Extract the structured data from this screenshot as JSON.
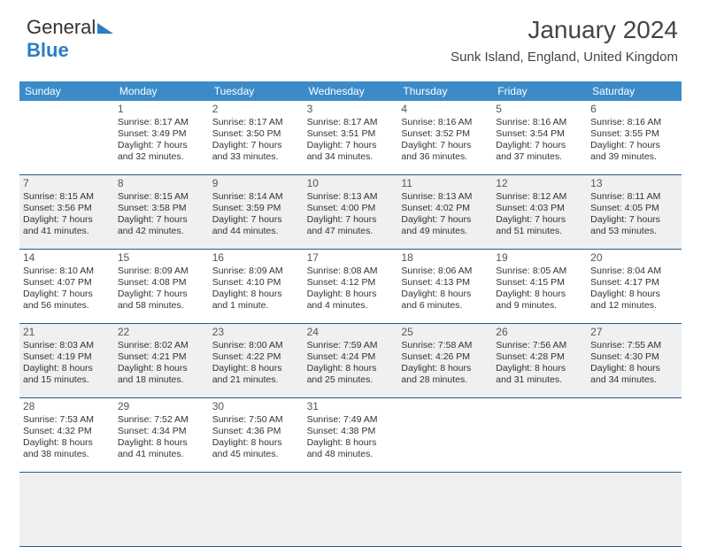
{
  "brand": {
    "part1": "General",
    "part2": "Blue"
  },
  "title": "January 2024",
  "subtitle": "Sunk Island, England, United Kingdom",
  "weekdays": [
    "Sunday",
    "Monday",
    "Tuesday",
    "Wednesday",
    "Thursday",
    "Friday",
    "Saturday"
  ],
  "colors": {
    "header_bg": "#3b8bc9",
    "header_text": "#ffffff",
    "border": "#2b5a8a",
    "shade_bg": "#eef0f1",
    "text": "#333333",
    "brand_blue": "#2b7ec2"
  },
  "calendar": {
    "start_weekday": 1,
    "num_days": 31,
    "rows": 6
  },
  "days": {
    "1": {
      "sunrise": "8:17 AM",
      "sunset": "3:49 PM",
      "daylight": "7 hours and 32 minutes."
    },
    "2": {
      "sunrise": "8:17 AM",
      "sunset": "3:50 PM",
      "daylight": "7 hours and 33 minutes."
    },
    "3": {
      "sunrise": "8:17 AM",
      "sunset": "3:51 PM",
      "daylight": "7 hours and 34 minutes."
    },
    "4": {
      "sunrise": "8:16 AM",
      "sunset": "3:52 PM",
      "daylight": "7 hours and 36 minutes."
    },
    "5": {
      "sunrise": "8:16 AM",
      "sunset": "3:54 PM",
      "daylight": "7 hours and 37 minutes."
    },
    "6": {
      "sunrise": "8:16 AM",
      "sunset": "3:55 PM",
      "daylight": "7 hours and 39 minutes."
    },
    "7": {
      "sunrise": "8:15 AM",
      "sunset": "3:56 PM",
      "daylight": "7 hours and 41 minutes."
    },
    "8": {
      "sunrise": "8:15 AM",
      "sunset": "3:58 PM",
      "daylight": "7 hours and 42 minutes."
    },
    "9": {
      "sunrise": "8:14 AM",
      "sunset": "3:59 PM",
      "daylight": "7 hours and 44 minutes."
    },
    "10": {
      "sunrise": "8:13 AM",
      "sunset": "4:00 PM",
      "daylight": "7 hours and 47 minutes."
    },
    "11": {
      "sunrise": "8:13 AM",
      "sunset": "4:02 PM",
      "daylight": "7 hours and 49 minutes."
    },
    "12": {
      "sunrise": "8:12 AM",
      "sunset": "4:03 PM",
      "daylight": "7 hours and 51 minutes."
    },
    "13": {
      "sunrise": "8:11 AM",
      "sunset": "4:05 PM",
      "daylight": "7 hours and 53 minutes."
    },
    "14": {
      "sunrise": "8:10 AM",
      "sunset": "4:07 PM",
      "daylight": "7 hours and 56 minutes."
    },
    "15": {
      "sunrise": "8:09 AM",
      "sunset": "4:08 PM",
      "daylight": "7 hours and 58 minutes."
    },
    "16": {
      "sunrise": "8:09 AM",
      "sunset": "4:10 PM",
      "daylight": "8 hours and 1 minute."
    },
    "17": {
      "sunrise": "8:08 AM",
      "sunset": "4:12 PM",
      "daylight": "8 hours and 4 minutes."
    },
    "18": {
      "sunrise": "8:06 AM",
      "sunset": "4:13 PM",
      "daylight": "8 hours and 6 minutes."
    },
    "19": {
      "sunrise": "8:05 AM",
      "sunset": "4:15 PM",
      "daylight": "8 hours and 9 minutes."
    },
    "20": {
      "sunrise": "8:04 AM",
      "sunset": "4:17 PM",
      "daylight": "8 hours and 12 minutes."
    },
    "21": {
      "sunrise": "8:03 AM",
      "sunset": "4:19 PM",
      "daylight": "8 hours and 15 minutes."
    },
    "22": {
      "sunrise": "8:02 AM",
      "sunset": "4:21 PM",
      "daylight": "8 hours and 18 minutes."
    },
    "23": {
      "sunrise": "8:00 AM",
      "sunset": "4:22 PM",
      "daylight": "8 hours and 21 minutes."
    },
    "24": {
      "sunrise": "7:59 AM",
      "sunset": "4:24 PM",
      "daylight": "8 hours and 25 minutes."
    },
    "25": {
      "sunrise": "7:58 AM",
      "sunset": "4:26 PM",
      "daylight": "8 hours and 28 minutes."
    },
    "26": {
      "sunrise": "7:56 AM",
      "sunset": "4:28 PM",
      "daylight": "8 hours and 31 minutes."
    },
    "27": {
      "sunrise": "7:55 AM",
      "sunset": "4:30 PM",
      "daylight": "8 hours and 34 minutes."
    },
    "28": {
      "sunrise": "7:53 AM",
      "sunset": "4:32 PM",
      "daylight": "8 hours and 38 minutes."
    },
    "29": {
      "sunrise": "7:52 AM",
      "sunset": "4:34 PM",
      "daylight": "8 hours and 41 minutes."
    },
    "30": {
      "sunrise": "7:50 AM",
      "sunset": "4:36 PM",
      "daylight": "8 hours and 45 minutes."
    },
    "31": {
      "sunrise": "7:49 AM",
      "sunset": "4:38 PM",
      "daylight": "8 hours and 48 minutes."
    }
  },
  "labels": {
    "sunrise_prefix": "Sunrise: ",
    "sunset_prefix": "Sunset: ",
    "daylight_prefix": "Daylight: "
  }
}
